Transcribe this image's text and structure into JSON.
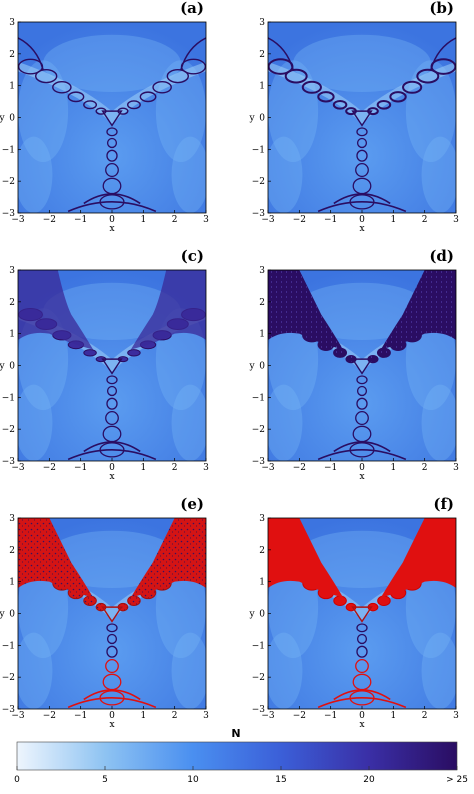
{
  "panels": [
    {
      "id": "a",
      "label": "(a)",
      "xlabel": "x",
      "ylabel": "y",
      "red_basin": false,
      "dark_lobes": "thin"
    },
    {
      "id": "b",
      "label": "(b)",
      "xlabel": "x",
      "ylabel": "y",
      "red_basin": false,
      "dark_lobes": "chain"
    },
    {
      "id": "c",
      "label": "(c)",
      "xlabel": "x",
      "ylabel": "y",
      "red_basin": false,
      "dark_lobes": "bands"
    },
    {
      "id": "d",
      "label": "(d)",
      "xlabel": "x",
      "ylabel": "y",
      "red_basin": false,
      "dark_lobes": "filled"
    },
    {
      "id": "e",
      "label": "(e)",
      "xlabel": "x",
      "ylabel": "y",
      "red_basin": true,
      "dark_lobes": "speckled"
    },
    {
      "id": "f",
      "label": "(f)",
      "xlabel": "x",
      "ylabel": "y",
      "red_basin": true,
      "dark_lobes": "solid"
    }
  ],
  "axes": {
    "xlim": [
      -3,
      3
    ],
    "ylim": [
      -3,
      3
    ],
    "x_ticks": [
      "-3",
      "-2",
      "-1",
      "0",
      "1",
      "2",
      "3"
    ],
    "y_ticks": [
      "3",
      "2",
      "1",
      "0",
      "-1",
      "-2",
      "-3"
    ]
  },
  "colorbar": {
    "title": "N",
    "tick_labels": [
      "0",
      "5",
      "10",
      "15",
      "20",
      "> 25"
    ],
    "range": [
      0,
      25
    ],
    "colors": [
      "#eef5fd",
      "#8ec3f2",
      "#4a8ff0",
      "#3b5fd8",
      "#3a2fa6",
      "#2a0d62"
    ]
  },
  "colors": {
    "background_blue": "#3f7ee6",
    "light_blue": "#78b8f5",
    "dark_purple": "#2a0d62",
    "red": "#e01010"
  }
}
